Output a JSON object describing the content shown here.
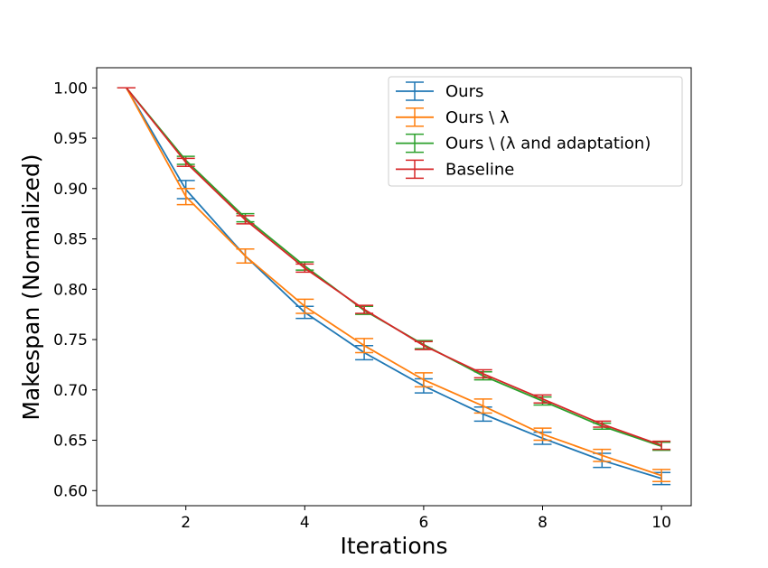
{
  "chart_data": {
    "type": "line",
    "title": "",
    "xlabel": "Iterations",
    "ylabel": "Makespan (Normalized)",
    "xlim": [
      0.5,
      10.5
    ],
    "ylim": [
      0.585,
      1.02
    ],
    "xticks": [
      2,
      4,
      6,
      8,
      10
    ],
    "yticks": [
      0.6,
      0.65,
      0.7,
      0.75,
      0.8,
      0.85,
      0.9,
      0.95,
      1.0
    ],
    "xtick_labels": [
      "2",
      "4",
      "6",
      "8",
      "10"
    ],
    "ytick_labels": [
      "0.60",
      "0.65",
      "0.70",
      "0.75",
      "0.80",
      "0.85",
      "0.90",
      "0.95",
      "1.00"
    ],
    "grid": false,
    "legend_position": "top-right",
    "x": [
      1,
      2,
      3,
      4,
      5,
      6,
      7,
      8,
      9,
      10
    ],
    "series": [
      {
        "name": "Ours",
        "color": "#1f77b4",
        "values": [
          1.0,
          0.899,
          0.833,
          0.777,
          0.737,
          0.704,
          0.676,
          0.652,
          0.63,
          0.612
        ],
        "errors": [
          0.0,
          0.009,
          0.007,
          0.006,
          0.007,
          0.007,
          0.007,
          0.006,
          0.007,
          0.006
        ]
      },
      {
        "name": "Ours \\ λ",
        "color": "#ff7f0e",
        "values": [
          1.0,
          0.892,
          0.833,
          0.783,
          0.744,
          0.71,
          0.684,
          0.656,
          0.635,
          0.615
        ],
        "errors": [
          0.0,
          0.008,
          0.007,
          0.007,
          0.007,
          0.007,
          0.007,
          0.006,
          0.006,
          0.006
        ]
      },
      {
        "name": "Ours \\ (λ and adaptation)",
        "color": "#2ca02c",
        "values": [
          1.0,
          0.928,
          0.871,
          0.823,
          0.779,
          0.745,
          0.714,
          0.689,
          0.664,
          0.644
        ],
        "errors": [
          0.0,
          0.004,
          0.004,
          0.004,
          0.004,
          0.004,
          0.004,
          0.004,
          0.003,
          0.004
        ]
      },
      {
        "name": "Baseline",
        "color": "#d62728",
        "values": [
          1.0,
          0.926,
          0.869,
          0.821,
          0.78,
          0.744,
          0.716,
          0.691,
          0.666,
          0.645
        ],
        "errors": [
          0.0,
          0.004,
          0.004,
          0.004,
          0.004,
          0.004,
          0.004,
          0.004,
          0.003,
          0.004
        ]
      }
    ]
  }
}
